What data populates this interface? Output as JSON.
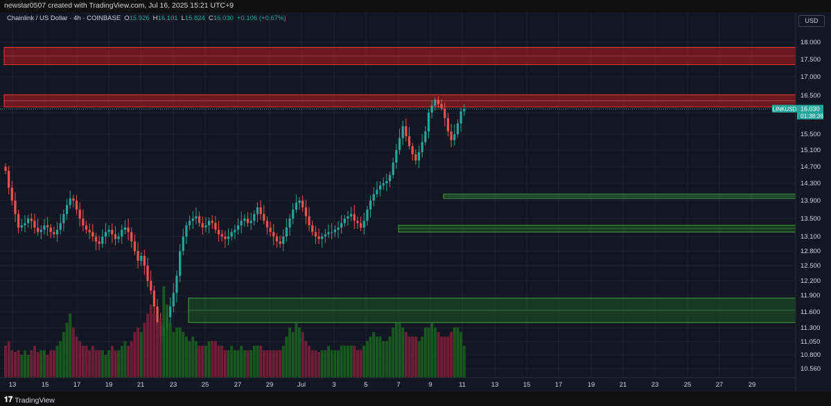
{
  "header": {
    "attribution": "newstar0507 created with TradingView.com, Jul 16, 2025 15:21 UTC+9"
  },
  "legend": {
    "symbol": "Chainlink / US Dollar · 4h · COINBASE",
    "o_label": "O",
    "o_value": "15.926",
    "h_label": "H",
    "h_value": "16.101",
    "l_label": "L",
    "l_value": "15.824",
    "c_label": "C",
    "c_value": "16.030",
    "change": "+0.106 (+0.67%)"
  },
  "currency": "USD",
  "price_tag": {
    "ticker": "LINKUSD",
    "price": "16.030",
    "countdown": "01:38:36"
  },
  "footer": {
    "brand": "TradingView"
  },
  "colors": {
    "background": "#131722",
    "up": "#26a69a",
    "down": "#ef5350",
    "resistance_zone": "#b71c1c",
    "support_zone": "#1b5e20",
    "grid": "#1e222d"
  },
  "chart_data": {
    "type": "candlestick",
    "timeframe": "4h",
    "y_ticks": [
      "18.000",
      "17.500",
      "17.000",
      "16.500",
      "15.900",
      "15.500",
      "15.100",
      "14.700",
      "14.300",
      "13.900",
      "13.500",
      "13.100",
      "12.800",
      "12.500",
      "12.200",
      "11.900",
      "11.600",
      "11.300",
      "11.050",
      "10.800",
      "10.560"
    ],
    "x_ticks": [
      "13",
      "15",
      "17",
      "19",
      "21",
      "23",
      "25",
      "27",
      "29",
      "Jul",
      "3",
      "5",
      "7",
      "9",
      "11",
      "13",
      "15",
      "17",
      "19",
      "21",
      "23",
      "25",
      "27",
      "29"
    ],
    "zones": [
      {
        "kind": "resistance",
        "from": 17.35,
        "to": 17.85
      },
      {
        "kind": "resistance",
        "from": 16.1,
        "to": 16.52
      },
      {
        "kind": "support",
        "from": 13.95,
        "to": 14.05
      },
      {
        "kind": "support",
        "from": 13.2,
        "to": 13.35
      },
      {
        "kind": "support",
        "from": 11.4,
        "to": 11.85
      }
    ],
    "last_price": 16.03,
    "closes": [
      14.6,
      14.2,
      13.9,
      13.6,
      13.3,
      13.35,
      13.4,
      13.5,
      13.45,
      13.3,
      13.2,
      13.25,
      13.35,
      13.3,
      13.2,
      13.15,
      13.25,
      13.4,
      13.6,
      13.8,
      13.95,
      13.9,
      13.7,
      13.5,
      13.35,
      13.25,
      13.2,
      13.1,
      13.0,
      12.95,
      13.1,
      13.2,
      13.25,
      13.15,
      13.05,
      13.1,
      13.25,
      13.3,
      13.2,
      13.0,
      12.8,
      12.6,
      12.7,
      12.5,
      12.2,
      12.0,
      11.7,
      11.4,
      11.15,
      11.3,
      11.5,
      11.7,
      11.95,
      12.3,
      12.8,
      13.1,
      13.35,
      13.45,
      13.5,
      13.55,
      13.4,
      13.3,
      13.35,
      13.45,
      13.4,
      13.25,
      13.15,
      13.1,
      13.05,
      13.1,
      13.2,
      13.25,
      13.35,
      13.45,
      13.5,
      13.4,
      13.45,
      13.6,
      13.75,
      13.6,
      13.45,
      13.3,
      13.2,
      13.1,
      13.0,
      12.95,
      13.1,
      13.3,
      13.5,
      13.7,
      13.85,
      13.9,
      13.75,
      13.55,
      13.35,
      13.2,
      13.1,
      13.05,
      13.1,
      13.15,
      13.2,
      13.2,
      13.25,
      13.3,
      13.4,
      13.5,
      13.55,
      13.6,
      13.45,
      13.4,
      13.3,
      13.45,
      13.7,
      13.9,
      14.05,
      14.15,
      14.25,
      14.3,
      14.35,
      14.5,
      14.8,
      15.1,
      15.4,
      15.65,
      15.45,
      15.2,
      15.0,
      14.85,
      15.05,
      15.3,
      15.55,
      15.9,
      16.15,
      16.35,
      16.2,
      16.05,
      15.8,
      15.55,
      15.35,
      15.5,
      15.7,
      15.95,
      16.03
    ],
    "volumes": [
      0.35,
      0.4,
      0.3,
      0.28,
      0.3,
      0.25,
      0.3,
      0.25,
      0.3,
      0.35,
      0.28,
      0.3,
      0.3,
      0.25,
      0.3,
      0.3,
      0.35,
      0.4,
      0.5,
      0.6,
      0.7,
      0.55,
      0.45,
      0.4,
      0.35,
      0.35,
      0.3,
      0.35,
      0.3,
      0.3,
      0.3,
      0.25,
      0.3,
      0.35,
      0.3,
      0.3,
      0.35,
      0.4,
      0.35,
      0.4,
      0.5,
      0.55,
      0.5,
      0.6,
      0.7,
      0.8,
      0.7,
      0.6,
      0.65,
      1.0,
      0.8,
      0.6,
      0.5,
      0.55,
      0.55,
      0.5,
      0.45,
      0.4,
      0.45,
      0.4,
      0.35,
      0.35,
      0.35,
      0.4,
      0.4,
      0.4,
      0.35,
      0.35,
      0.3,
      0.3,
      0.35,
      0.3,
      0.3,
      0.35,
      0.3,
      0.3,
      0.3,
      0.35,
      0.35,
      0.35,
      0.3,
      0.3,
      0.3,
      0.3,
      0.3,
      0.3,
      0.35,
      0.45,
      0.55,
      0.5,
      0.6,
      0.55,
      0.5,
      0.4,
      0.35,
      0.3,
      0.3,
      0.28,
      0.3,
      0.3,
      0.35,
      0.3,
      0.3,
      0.3,
      0.35,
      0.35,
      0.35,
      0.35,
      0.35,
      0.3,
      0.3,
      0.35,
      0.4,
      0.45,
      0.5,
      0.45,
      0.45,
      0.4,
      0.4,
      0.45,
      0.55,
      0.6,
      0.6,
      0.55,
      0.5,
      0.45,
      0.45,
      0.45,
      0.4,
      0.45,
      0.55,
      0.55,
      0.6,
      0.55,
      0.5,
      0.45,
      0.45,
      0.45,
      0.5,
      0.55,
      0.55,
      0.5,
      0.35
    ]
  }
}
